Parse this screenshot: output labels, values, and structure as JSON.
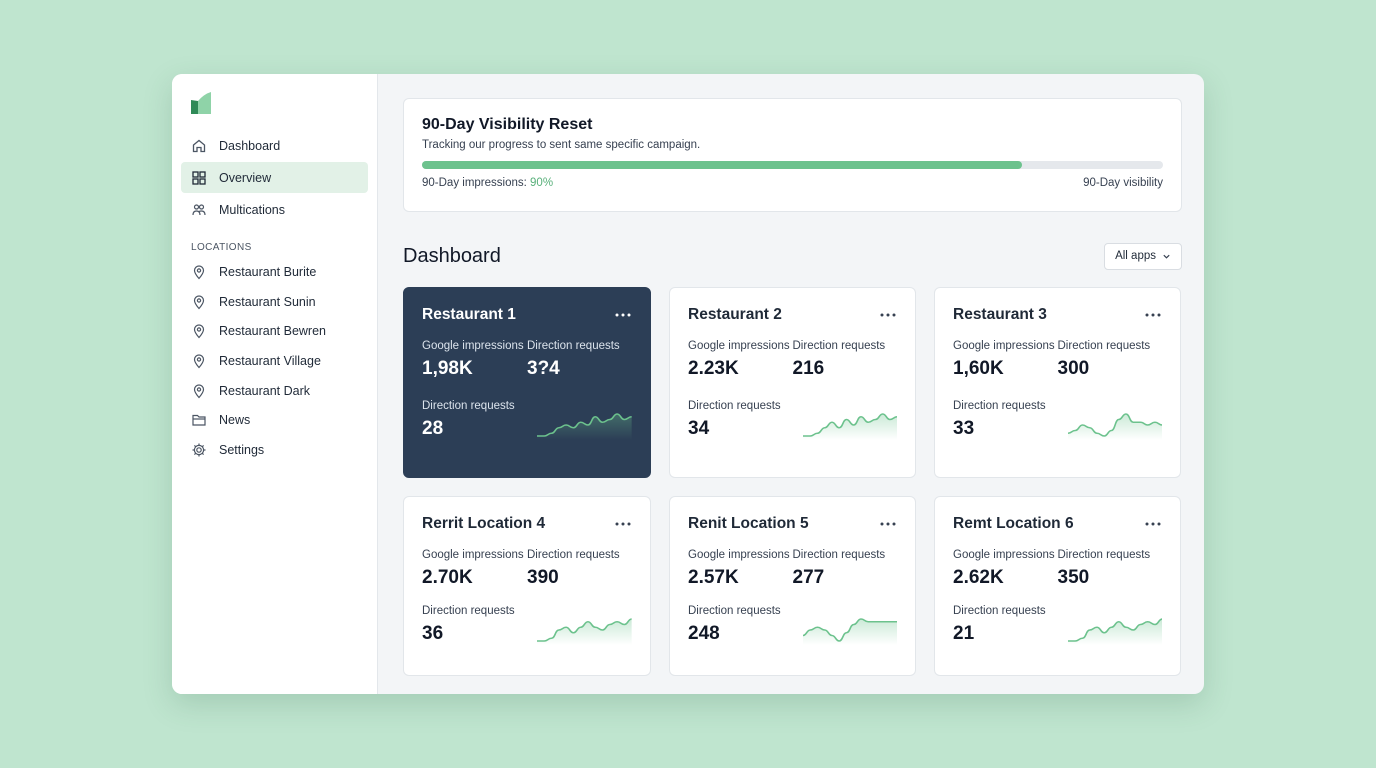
{
  "sidebar": {
    "nav": [
      {
        "label": "Dashboard",
        "icon": "home-icon"
      },
      {
        "label": "Overview",
        "icon": "grid-icon",
        "active": true
      },
      {
        "label": "Multications",
        "icon": "people-icon"
      }
    ],
    "locations_label": "LOCATIONS",
    "locations": [
      {
        "label": "Restaurant Burite",
        "icon": "map-pin-icon"
      },
      {
        "label": "Restaurant Sunin",
        "icon": "map-pin-icon"
      },
      {
        "label": "Restaurant Bewren",
        "icon": "map-pin-icon"
      },
      {
        "label": "Restaurant Village",
        "icon": "map-pin-icon"
      },
      {
        "label": "Restaurant Dark",
        "icon": "map-pin-icon"
      }
    ],
    "bottom": [
      {
        "label": "News",
        "icon": "folder-icon"
      },
      {
        "label": "Settings",
        "icon": "gear-icon"
      }
    ]
  },
  "campaign": {
    "title": "90-Day Visibility Reset",
    "subtitle": "Tracking our progress to sent same specific campaign.",
    "progress": 0.81,
    "impressions_label": "90-Day impressions:",
    "impressions_pct": "90%",
    "right_label": "90-Day visibility"
  },
  "dashboard": {
    "title": "Dashboard",
    "filter": "All apps"
  },
  "colors": {
    "accent": "#6cc28d",
    "dark_card": "#2c3e56",
    "background": "#bfe5cf"
  },
  "cards": [
    {
      "title": "Restaurant 1",
      "dark": true,
      "stat1_label": "Google impressions",
      "stat1_value": "1,98K",
      "stat2_label": "Direction requests",
      "stat2_value": "3?4",
      "stat3_label": "Direction requests",
      "stat3_value": "28",
      "spark": [
        2,
        2,
        3,
        5,
        6,
        5,
        7,
        6,
        9,
        7,
        8,
        10,
        8,
        9
      ]
    },
    {
      "title": "Restaurant 2",
      "dark": false,
      "stat1_label": "Google impressions",
      "stat1_value": "2.23K",
      "stat2_label": "Direction requests",
      "stat2_value": "216",
      "stat3_label": "Direction requests",
      "stat3_value": "34",
      "spark": [
        2,
        2,
        3,
        5,
        7,
        5,
        8,
        6,
        9,
        7,
        8,
        10,
        8,
        9
      ]
    },
    {
      "title": "Restaurant 3",
      "dark": false,
      "stat1_label": "Google impressions",
      "stat1_value": "1,60K",
      "stat2_label": "Direction requests",
      "stat2_value": "300",
      "stat3_label": "Direction requests",
      "stat3_value": "33",
      "spark": [
        3,
        4,
        6,
        5,
        3,
        2,
        4,
        8,
        10,
        7,
        7,
        6,
        7,
        6
      ]
    },
    {
      "title": "Rerrit Location 4",
      "dark": false,
      "stat1_label": "Google impressions",
      "stat1_value": "2.70K",
      "stat2_label": "Direction requests",
      "stat2_value": "390",
      "stat3_label": "Direction requests",
      "stat3_value": "36",
      "spark": [
        2,
        2,
        3,
        6,
        7,
        5,
        7,
        9,
        7,
        6,
        8,
        9,
        8,
        10
      ]
    },
    {
      "title": "Renit Location 5",
      "dark": false,
      "stat1_label": "Google impressions",
      "stat1_value": "2.57K",
      "stat2_label": "Direction requests",
      "stat2_value": "277",
      "stat3_label": "Direction requests",
      "stat3_value": "248",
      "spark": [
        4,
        6,
        7,
        6,
        4,
        2,
        5,
        8,
        10,
        9,
        9,
        9,
        9,
        9
      ]
    },
    {
      "title": "Remt Location 6",
      "dark": false,
      "stat1_label": "Google impressions",
      "stat1_value": "2.62K",
      "stat2_label": "Direction requests",
      "stat2_value": "350",
      "stat3_label": "Direction requests",
      "stat3_value": "21",
      "spark": [
        2,
        2,
        3,
        6,
        7,
        5,
        7,
        9,
        7,
        6,
        8,
        9,
        8,
        10
      ]
    }
  ]
}
